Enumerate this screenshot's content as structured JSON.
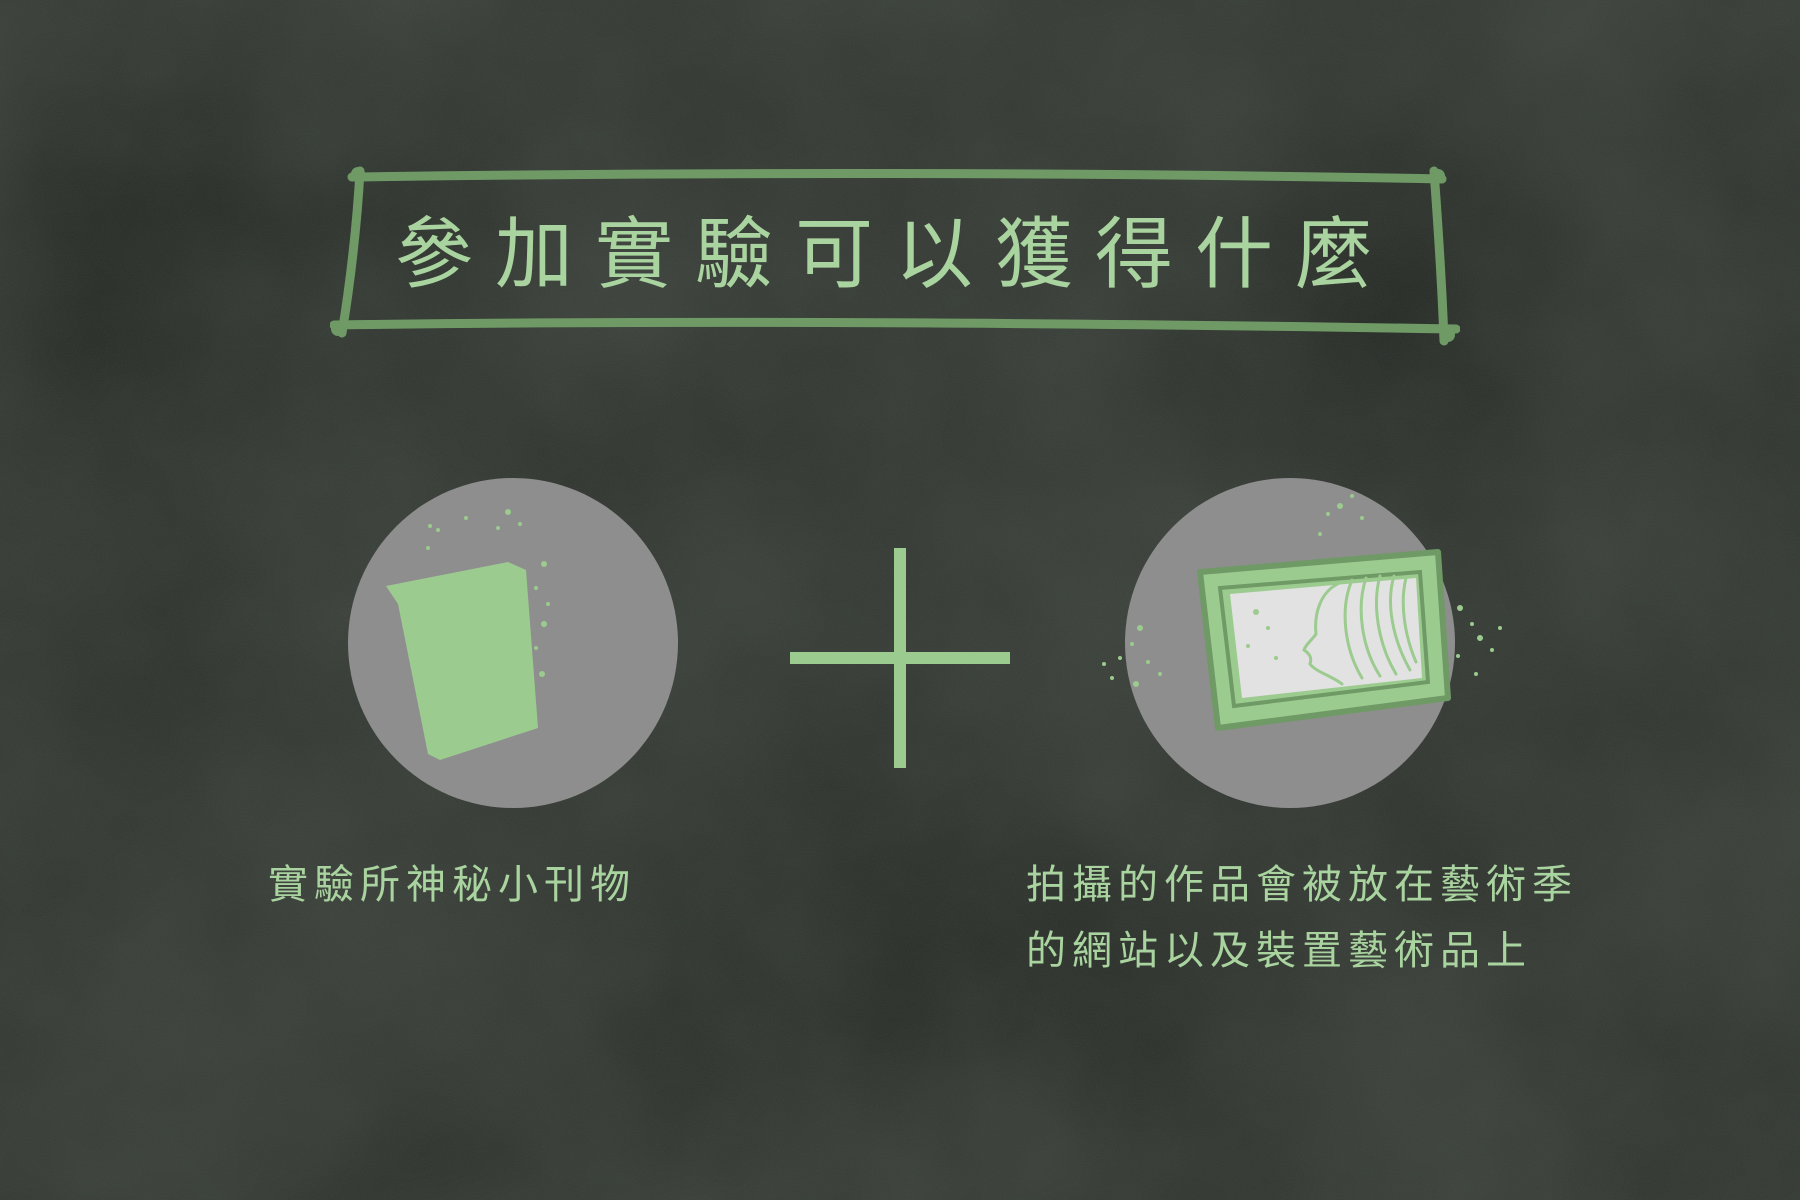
{
  "title": "參加實驗可以獲得什麼",
  "rewards": [
    {
      "icon": "booklet-icon",
      "caption_lines": [
        "實驗所神秘小刊物"
      ]
    },
    {
      "icon": "framed-photo-icon",
      "caption_lines": [
        "拍攝的作品會被放在藝術季",
        "的網站以及裝置藝術品上"
      ]
    }
  ],
  "connector": "plus-icon",
  "colors": {
    "background": "#2b2f2a",
    "accent_green": "#a9d39f",
    "frame_green": "#6f9a66",
    "circle_gray": "#8e8e8e",
    "photo_light": "#e2e2e2"
  }
}
